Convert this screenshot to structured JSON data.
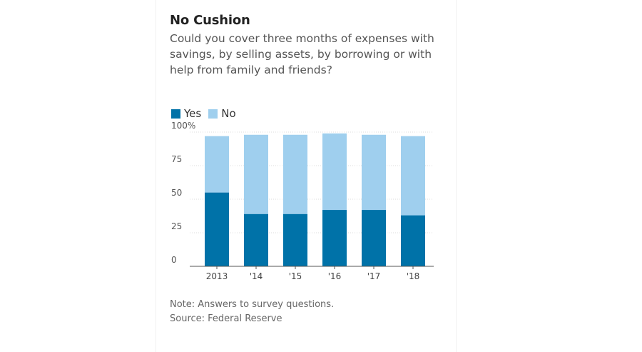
{
  "chart_data": {
    "type": "bar",
    "stacked": true,
    "title": "No Cushion",
    "subtitle": "Could you cover three months of expenses with savings, by selling assets, by borrowing or with help from family and friends?",
    "categories": [
      "2013",
      "'14",
      "'15",
      "'16",
      "'17",
      "'18"
    ],
    "series": [
      {
        "name": "Yes",
        "values": [
          55,
          39,
          39,
          42,
          42,
          38
        ],
        "color": "#0072a8"
      },
      {
        "name": "No",
        "values": [
          42,
          59,
          59,
          57,
          56,
          59
        ],
        "color": "#9fcfee"
      }
    ],
    "ylim": [
      0,
      100
    ],
    "yticks": [
      0,
      25,
      50,
      75,
      100
    ],
    "ytick_labels": [
      "0",
      "25",
      "50",
      "75",
      "100%"
    ],
    "grid": true,
    "legend": "top-left"
  },
  "footer": {
    "note": "Note: Answers to survey questions.",
    "source": "Source: Federal Reserve"
  }
}
